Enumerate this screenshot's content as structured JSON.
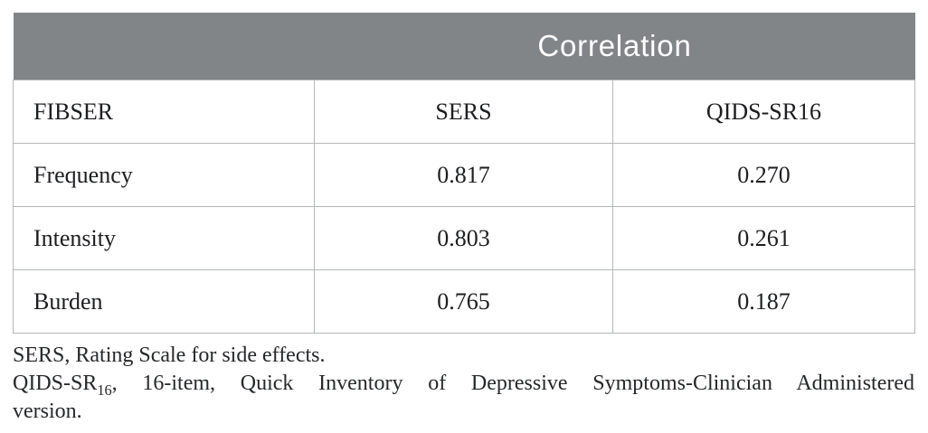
{
  "table": {
    "spanner": "Correlation",
    "columns": [
      "FIBSER",
      "SERS",
      "QIDS-SR16"
    ],
    "rows": [
      [
        "Frequency",
        "0.817",
        "0.270"
      ],
      [
        "Intensity",
        "0.803",
        "0.261"
      ],
      [
        "Burden",
        "0.765",
        "0.187"
      ]
    ]
  },
  "notes": {
    "line1": "SERS, Rating Scale for side effects.",
    "line2_prefix": "QIDS-SR",
    "line2_sub": "16",
    "line2_rest": ", 16-item, Quick Inventory of Depressive Symptoms-Clinician Administered",
    "line3": "version."
  },
  "colors": {
    "header_bg": "#828588",
    "header_text": "#ffffff",
    "border": "#b4b7b8",
    "body_text": "#1d1e20"
  },
  "chart_data": {
    "type": "table",
    "title": "Correlation",
    "row_header": "FIBSER",
    "column_headers": [
      "SERS",
      "QIDS-SR16"
    ],
    "rows": [
      {
        "label": "Frequency",
        "SERS": 0.817,
        "QIDS-SR16": 0.27
      },
      {
        "label": "Intensity",
        "SERS": 0.803,
        "QIDS-SR16": 0.261
      },
      {
        "label": "Burden",
        "SERS": 0.765,
        "QIDS-SR16": 0.187
      }
    ],
    "footnotes": [
      "SERS, Rating Scale for side effects.",
      "QIDS-SR16, 16-item, Quick Inventory of Depressive Symptoms-Clinician Administered version."
    ]
  }
}
